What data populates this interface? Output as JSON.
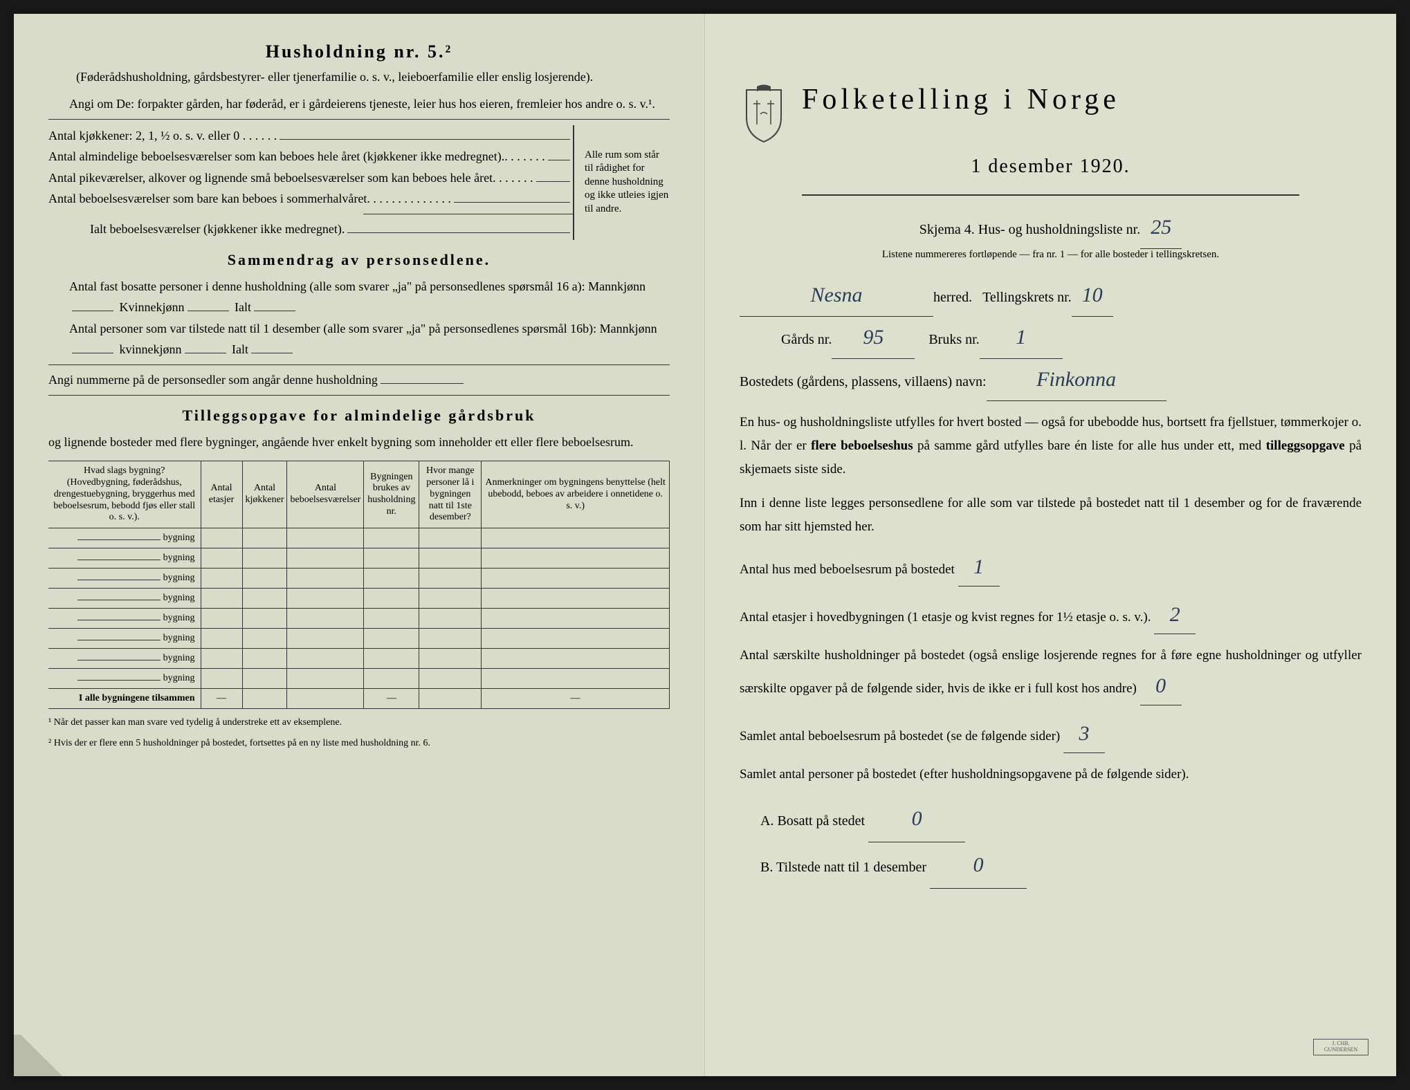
{
  "left": {
    "title": "Husholdning nr. 5.²",
    "intro1": "(Føderådshusholdning, gårdsbestyrer- eller tjenerfamilie o. s. v., leieboerfamilie eller enslig losjerende).",
    "intro2": "Angi om De: forpakter gården, har føderåd, er i gårdeierens tjeneste, leier hus hos eieren, fremleier hos andre o. s. v.¹.",
    "kitchen_label": "Antal kjøkkener: 2, 1, ½ o. s. v. eller 0",
    "rooms1": "Antal almindelige beboelsesværelser som kan beboes hele året (kjøkkener ikke medregnet).",
    "rooms2": "Antal pikeværelser, alkover og lignende små beboelsesværelser som kan beboes hele året",
    "rooms3": "Antal beboelsesværelser som bare kan beboes i sommerhalvåret",
    "rooms_total": "Ialt beboelsesværelser (kjøkkener ikke medregnet).",
    "brace_text": "Alle rum som står til rådighet for denne husholdning og ikke utleies igjen til andre.",
    "section2_title": "Sammendrag av personsedlene.",
    "s2_l1": "Antal fast bosatte personer i denne husholdning (alle som svarer „ja\" på personsedlenes spørsmål 16 a): Mannkjønn",
    "s2_kvinne": "Kvinnekjønn",
    "s2_ialt": "Ialt",
    "s2_l2": "Antal personer som var tilstede natt til 1 desember (alle som svarer „ja\" på personsedlenes spørsmål 16b): Mannkjønn",
    "s2_kvinne2": "kvinnekjønn",
    "s2_l3": "Angi nummerne på de personsedler som angår denne husholdning",
    "section3_title": "Tilleggsopgave for almindelige gårdsbruk",
    "s3_sub": "og lignende bosteder med flere bygninger, angående hver enkelt bygning som inneholder ett eller flere beboelsesrum.",
    "table": {
      "headers": [
        "Hvad slags bygning?\n(Hovedbygning, føderådshus, drengestuebygning, bryggerhus med beboelsesrum, bebodd fjøs eller stall o. s. v.).",
        "Antal etasjer",
        "Antal kjøkkener",
        "Antal beboelsesværelser",
        "Bygningen brukes av husholdning nr.",
        "Hvor mange personer lå i bygningen natt til 1ste desember?",
        "Anmerkninger om bygningens benyttelse (helt ubebodd, beboes av arbeidere i onnetidene o. s. v.)"
      ],
      "row_label": "bygning",
      "total_row": "I alle bygningene tilsammen",
      "dash": "—"
    },
    "footnote1": "Når det passer kan man svare ved tydelig å understreke ett av eksemplene.",
    "footnote2": "Hvis der er flere enn 5 husholdninger på bostedet, fortsettes på en ny liste med husholdning nr. 6."
  },
  "right": {
    "main_title": "Folketelling i Norge",
    "date": "1 desember 1920.",
    "skjema_label": "Skjema 4.  Hus- og husholdningsliste nr.",
    "skjema_value": "25",
    "note": "Listene nummereres fortløpende — fra nr. 1 — for alle bosteder i tellingskretsen.",
    "herred_value": "Nesna",
    "herred_label": "herred.",
    "tellingskrets_label": "Tellingskrets nr.",
    "tellingskrets_value": "10",
    "gards_label": "Gårds nr.",
    "gards_value": "95",
    "bruks_label": "Bruks nr.",
    "bruks_value": "1",
    "bosted_label": "Bostedets (gårdens, plassens, villaens) navn:",
    "bosted_value": "Finkonna",
    "para1": "En hus- og husholdningsliste utfylles for hvert bosted — også for ubebodde hus, bortsett fra fjellstuer, tømmerkojer o. l. Når der er",
    "para1b": "flere beboelseshus",
    "para1c": "på samme gård utfylles bare én liste for alle hus under ett, med",
    "para1d": "tilleggsopgave",
    "para1e": "på skjemaets siste side.",
    "para2": "Inn i denne liste legges personsedlene for alle som var tilstede på bostedet natt til 1 desember og for de fraværende som har sitt hjemsted her.",
    "q1": "Antal hus med beboelsesrum på bostedet",
    "q1_val": "1",
    "q2": "Antal etasjer i hovedbygningen (1 etasje og kvist regnes for 1½ etasje o. s. v.).",
    "q2_val": "2",
    "q3": "Antal særskilte husholdninger på bostedet (også enslige losjerende regnes for å føre egne husholdninger og utfyller særskilte opgaver på de følgende sider, hvis de ikke er i full kost hos andre)",
    "q3_val": "0",
    "q4": "Samlet antal beboelsesrum på bostedet (se de følgende sider)",
    "q4_val": "3",
    "q5": "Samlet antal personer på bostedet (efter husholdningsopgavene på de følgende sider).",
    "ans_a": "A.  Bosatt på stedet",
    "ans_a_val": "0",
    "ans_b": "B.  Tilstede natt til 1 desember",
    "ans_b_val": "0"
  },
  "colors": {
    "paper": "#d8dcc8",
    "paper_right": "#dce0cc",
    "ink": "#1a1a1a",
    "handwriting": "#2a3a5a"
  }
}
